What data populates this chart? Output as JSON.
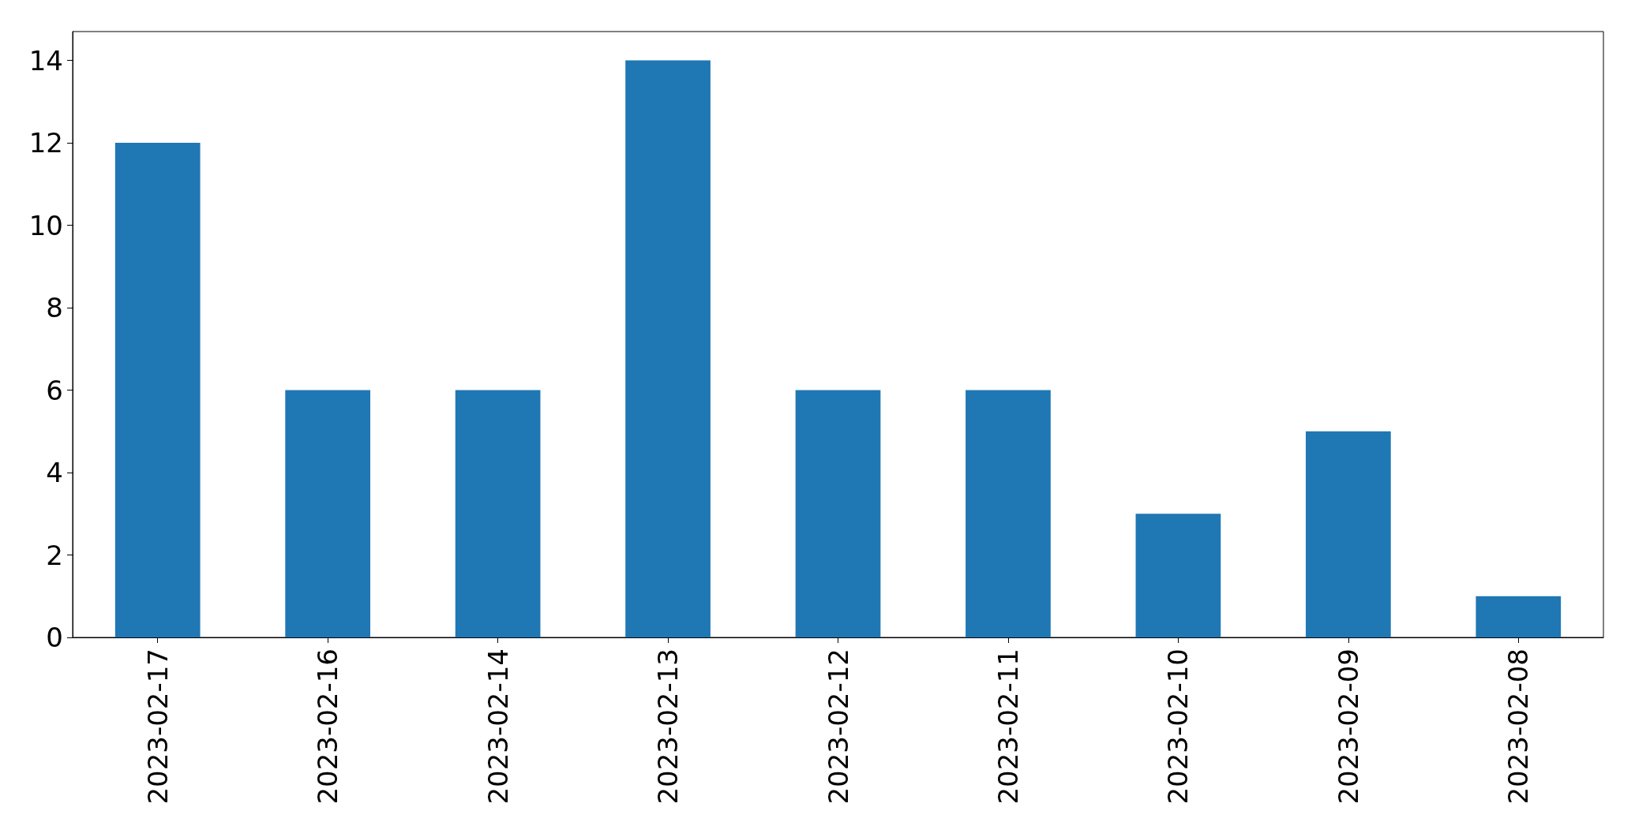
{
  "chart_data": {
    "type": "bar",
    "categories": [
      "2023-02-17",
      "2023-02-16",
      "2023-02-14",
      "2023-02-13",
      "2023-02-12",
      "2023-02-11",
      "2023-02-10",
      "2023-02-09",
      "2023-02-08"
    ],
    "values": [
      12,
      6,
      6,
      14,
      6,
      6,
      3,
      5,
      1
    ],
    "color": "#1f77b4",
    "ylim": [
      0,
      14.7
    ],
    "yticks": [
      0,
      2,
      4,
      6,
      8,
      10,
      12,
      14
    ]
  }
}
